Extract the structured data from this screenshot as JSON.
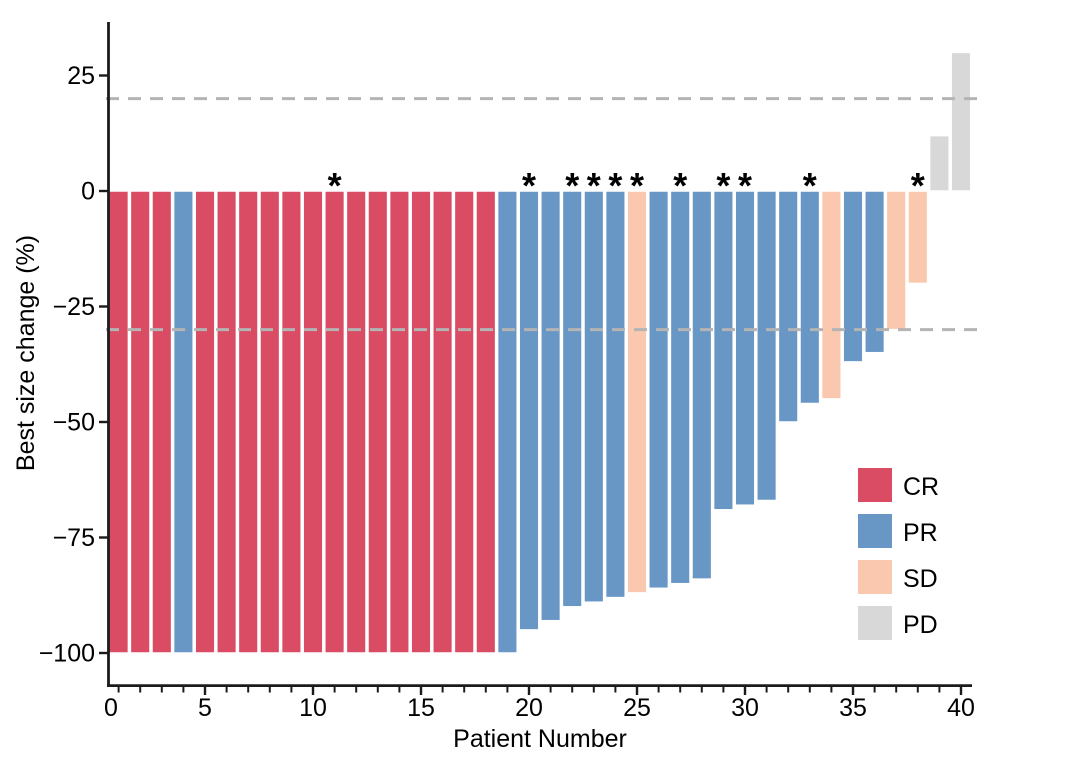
{
  "figure": {
    "xlabel": "Patient Number",
    "ylabel": "Best size change (%)"
  },
  "chart_data": {
    "type": "bar",
    "title": "",
    "xlabel": "Patient Number",
    "ylabel": "Best size change (%)",
    "xlim": [
      0,
      41
    ],
    "ylim": [
      -107,
      36
    ],
    "x_major_ticks": [
      0,
      5,
      10,
      15,
      20,
      25,
      30,
      35,
      40
    ],
    "x_minor_tick_every": 1,
    "y_ticks": [
      25,
      0,
      -25,
      -50,
      -75,
      -100
    ],
    "reference_lines_y": [
      20,
      -30
    ],
    "grid": "off",
    "legend_position": "inside-right-lower",
    "legend": [
      {
        "label": "CR",
        "color": "#DA4C63"
      },
      {
        "label": "PR",
        "color": "#6997C5"
      },
      {
        "label": "SD",
        "color": "#F9C8AE"
      },
      {
        "label": "PD",
        "color": "#D8D8D8"
      }
    ],
    "reference_line_color": "#B4B4B4",
    "bar_outline_color": "#FFFFFF",
    "patients": [
      {
        "n": 1,
        "value": -100,
        "response": "CR",
        "star": false
      },
      {
        "n": 2,
        "value": -100,
        "response": "CR",
        "star": false
      },
      {
        "n": 3,
        "value": -100,
        "response": "CR",
        "star": false
      },
      {
        "n": 4,
        "value": -100,
        "response": "PR",
        "star": false
      },
      {
        "n": 5,
        "value": -100,
        "response": "CR",
        "star": false
      },
      {
        "n": 6,
        "value": -100,
        "response": "CR",
        "star": false
      },
      {
        "n": 7,
        "value": -100,
        "response": "CR",
        "star": false
      },
      {
        "n": 8,
        "value": -100,
        "response": "CR",
        "star": false
      },
      {
        "n": 9,
        "value": -100,
        "response": "CR",
        "star": false
      },
      {
        "n": 10,
        "value": -100,
        "response": "CR",
        "star": false
      },
      {
        "n": 11,
        "value": -100,
        "response": "CR",
        "star": true
      },
      {
        "n": 12,
        "value": -100,
        "response": "CR",
        "star": false
      },
      {
        "n": 13,
        "value": -100,
        "response": "CR",
        "star": false
      },
      {
        "n": 14,
        "value": -100,
        "response": "CR",
        "star": false
      },
      {
        "n": 15,
        "value": -100,
        "response": "CR",
        "star": false
      },
      {
        "n": 16,
        "value": -100,
        "response": "CR",
        "star": false
      },
      {
        "n": 17,
        "value": -100,
        "response": "CR",
        "star": false
      },
      {
        "n": 18,
        "value": -100,
        "response": "CR",
        "star": false
      },
      {
        "n": 19,
        "value": -100,
        "response": "PR",
        "star": false
      },
      {
        "n": 20,
        "value": -95,
        "response": "PR",
        "star": true
      },
      {
        "n": 21,
        "value": -93,
        "response": "PR",
        "star": false
      },
      {
        "n": 22,
        "value": -90,
        "response": "PR",
        "star": true
      },
      {
        "n": 23,
        "value": -89,
        "response": "PR",
        "star": true
      },
      {
        "n": 24,
        "value": -88,
        "response": "PR",
        "star": true
      },
      {
        "n": 25,
        "value": -87,
        "response": "SD",
        "star": true
      },
      {
        "n": 26,
        "value": -86,
        "response": "PR",
        "star": false
      },
      {
        "n": 27,
        "value": -85,
        "response": "PR",
        "star": true
      },
      {
        "n": 28,
        "value": -84,
        "response": "PR",
        "star": false
      },
      {
        "n": 29,
        "value": -69,
        "response": "PR",
        "star": true
      },
      {
        "n": 30,
        "value": -68,
        "response": "PR",
        "star": true
      },
      {
        "n": 31,
        "value": -67,
        "response": "PR",
        "star": false
      },
      {
        "n": 32,
        "value": -50,
        "response": "PR",
        "star": false
      },
      {
        "n": 33,
        "value": -46,
        "response": "PR",
        "star": true
      },
      {
        "n": 34,
        "value": -45,
        "response": "SD",
        "star": false
      },
      {
        "n": 35,
        "value": -37,
        "response": "PR",
        "star": false
      },
      {
        "n": 36,
        "value": -35,
        "response": "PR",
        "star": false
      },
      {
        "n": 37,
        "value": -30,
        "response": "SD",
        "star": false
      },
      {
        "n": 38,
        "value": -20,
        "response": "SD",
        "star": true
      },
      {
        "n": 39,
        "value": 12,
        "response": "PD",
        "star": false
      },
      {
        "n": 40,
        "value": 30,
        "response": "PD",
        "star": false
      }
    ]
  }
}
